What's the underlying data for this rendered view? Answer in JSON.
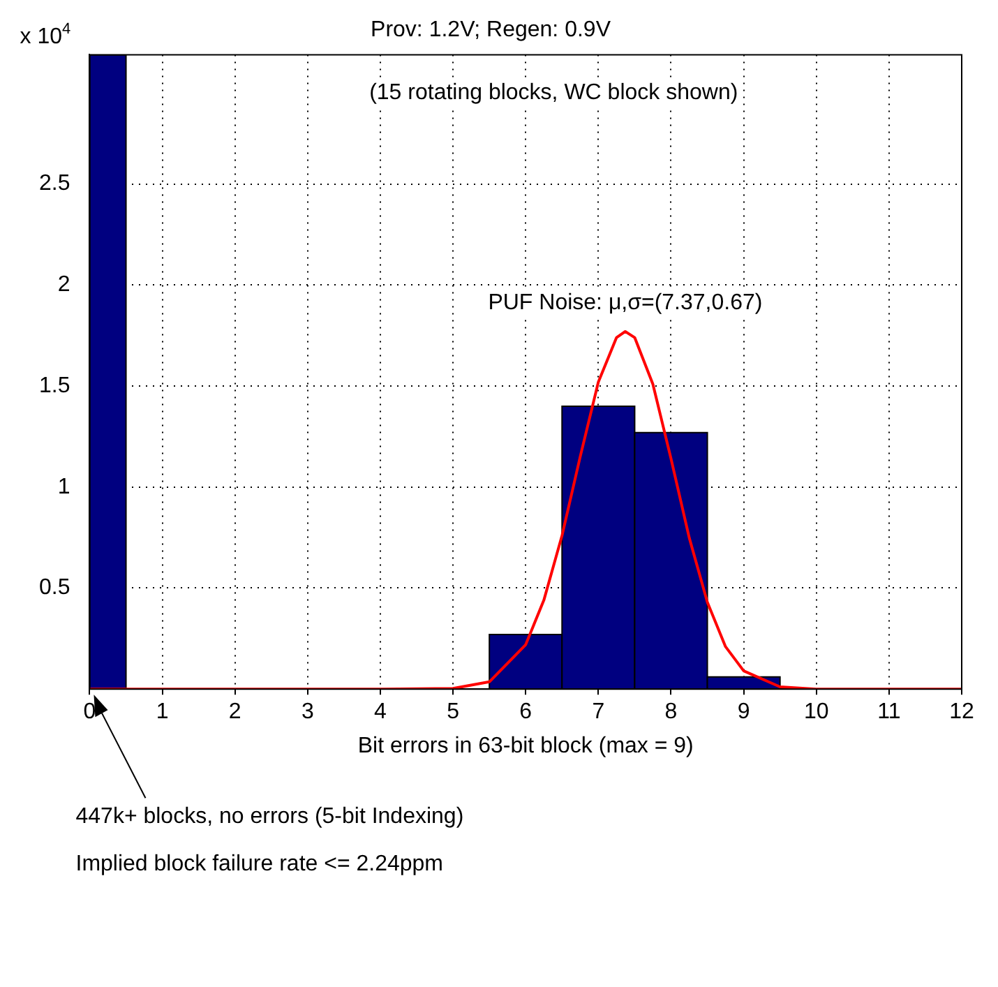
{
  "chart_data": {
    "type": "histogram",
    "title": "Prov: 1.2V; Regen: 0.9V",
    "xlabel": "Bit errors in 63-bit block (max = 9)",
    "ylabel": "x 10$^{4}$",
    "bins": [
      0,
      0.5,
      5.5,
      6.5,
      7.5,
      8.5,
      9.5
    ],
    "values": [
      3.14,
      0,
      0.27,
      1.4,
      1.27,
      0.06
    ],
    "color": "#000080",
    "series": [
      {
        "type": "line",
        "color": "#ff0000",
        "x": [
          0,
          4,
          5,
          5.5,
          6,
          6.25,
          6.5,
          6.75,
          7,
          7.25,
          7.37,
          7.5,
          7.75,
          8,
          8.25,
          8.5,
          8.75,
          9,
          9.5,
          10,
          12
        ],
        "values": [
          0,
          0,
          0.003,
          0.036,
          0.22,
          0.44,
          0.76,
          1.15,
          1.52,
          1.74,
          1.77,
          1.74,
          1.51,
          1.14,
          0.75,
          0.43,
          0.21,
          0.09,
          0.011,
          0,
          0
        ]
      }
    ],
    "xlim": [
      0,
      12
    ],
    "xticks": [
      0,
      1,
      2,
      3,
      4,
      5,
      6,
      7,
      8,
      9,
      10,
      11,
      12
    ],
    "ylim": [
      0,
      3.14
    ],
    "yticks": [
      0.5,
      1,
      1.5,
      2,
      2.5
    ],
    "grid": true,
    "marker": "none",
    "line_style": "solid",
    "annotations": [
      "(15 rotating blocks, WC block shown)",
      {
        "text": "PUF Noise: μ,σ=(7.37,0.67)",
        "x": 7.37,
        "y": 1.77
      },
      "447k+ blocks, no errors (5-bit Indexing)",
      "Implied block failure rate <= 2.24ppm"
    ]
  }
}
